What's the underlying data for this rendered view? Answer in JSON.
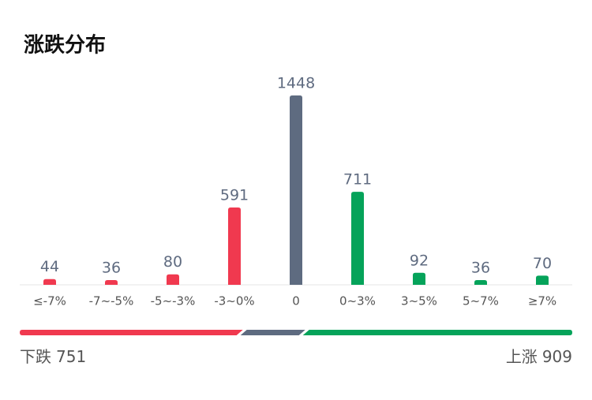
{
  "chart_data": {
    "type": "bar",
    "title": "涨跌分布",
    "categories": [
      "≤-7%",
      "-7~-5%",
      "-5~-3%",
      "-3~0%",
      "0",
      "0~3%",
      "3~5%",
      "5~7%",
      "≥7%"
    ],
    "values": [
      44,
      36,
      80,
      591,
      1448,
      711,
      92,
      36,
      70
    ],
    "colors": [
      "#f0394f",
      "#f0394f",
      "#f0394f",
      "#f0394f",
      "#5e6b80",
      "#05a35a",
      "#05a35a",
      "#05a35a",
      "#05a35a"
    ]
  },
  "summary": {
    "down": {
      "label": "下跌",
      "value": 751,
      "color": "#f0394f"
    },
    "up": {
      "label": "上涨",
      "value": 909,
      "color": "#05a35a"
    },
    "flat_color": "#5e6b80"
  }
}
